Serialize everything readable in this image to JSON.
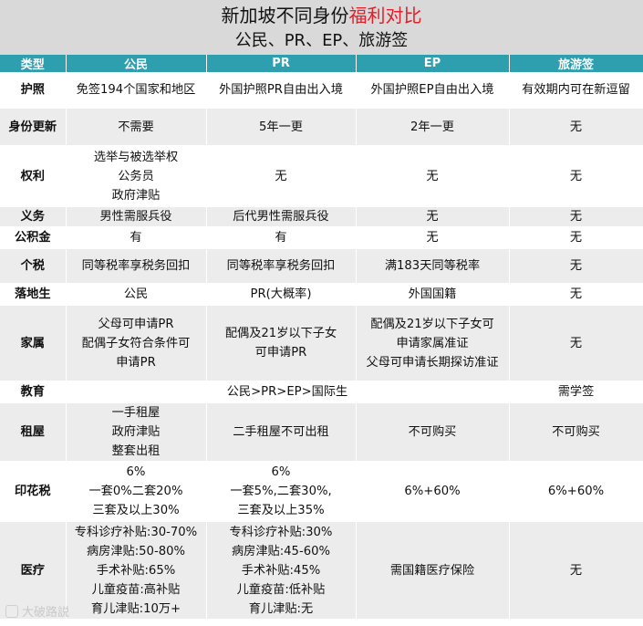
{
  "title": {
    "main": "新加坡不同身份",
    "highlight": "福利对比",
    "subtitle": "公民、PR、EP、旅游签"
  },
  "headers": [
    "类型",
    "公民",
    "PR",
    "EP",
    "旅游签"
  ],
  "rows": [
    {
      "cat": "护照",
      "cells": [
        [
          "免签194个国家和地区"
        ],
        [
          "外国护照PR自由出入境"
        ],
        [
          "外国护照EP自由出入境"
        ],
        [
          "有效期内可在新逗留"
        ]
      ]
    },
    {
      "cat": "身份更新",
      "cells": [
        [
          "不需要"
        ],
        [
          "5年一更"
        ],
        [
          "2年一更"
        ],
        [
          "无"
        ]
      ]
    },
    {
      "cat": "权利",
      "cells": [
        [
          "选举与被选举权",
          "公务员",
          "政府津贴"
        ],
        [
          "无"
        ],
        [
          "无"
        ],
        [
          "无"
        ]
      ]
    },
    {
      "cat": "义务",
      "cells": [
        [
          "男性需服兵役"
        ],
        [
          "后代男性需服兵役"
        ],
        [
          "无"
        ],
        [
          "无"
        ]
      ]
    },
    {
      "cat": "公积金",
      "cells": [
        [
          "有"
        ],
        [
          "有"
        ],
        [
          "无"
        ],
        [
          "无"
        ]
      ]
    },
    {
      "cat": "个税",
      "cells": [
        [
          "同等税率享税务回扣"
        ],
        [
          "同等税率享税务回扣"
        ],
        [
          "满183天同等税率"
        ],
        [
          "无"
        ]
      ]
    },
    {
      "cat": "落地生",
      "cells": [
        [
          "公民"
        ],
        [
          "PR(大概率)"
        ],
        [
          "外国国籍"
        ],
        [
          "无"
        ]
      ]
    },
    {
      "cat": "家属",
      "cells": [
        [
          "父母可申请PR",
          "配偶子女符合条件可",
          "申请PR"
        ],
        [
          "配偶及21岁以下子女",
          "可申请PR"
        ],
        [
          "配偶及21岁以下子女可",
          "申请家属准证",
          "父母可申请长期探访准证"
        ],
        [
          "无"
        ]
      ]
    },
    {
      "cat": "教育",
      "merged": "公民>PR>EP>国际生",
      "last": "需学签"
    },
    {
      "cat": "租屋",
      "cells": [
        [
          "一手租屋",
          "政府津贴",
          "整套出租"
        ],
        [
          "二手租屋不可出租"
        ],
        [
          "不可购买"
        ],
        [
          "不可购买"
        ]
      ]
    },
    {
      "cat": "印花税",
      "cells": [
        [
          "6%",
          "一套0%二套20%",
          "三套及以上30%"
        ],
        [
          "6%",
          "一套5%,二套30%,",
          "三套及以上35%"
        ],
        [
          "6%+60%"
        ],
        [
          "6%+60%"
        ]
      ]
    },
    {
      "cat": "医疗",
      "cells": [
        [
          "专科诊疗补贴:30-70%",
          "病房津贴:50-80%",
          "手术补贴:65%",
          "儿童疫苗:高补贴",
          "育儿津贴:10万+"
        ],
        [
          "专科诊疗补贴:30%",
          "病房津贴:45-60%",
          "手术补贴:45%",
          "儿童疫苗:低补贴",
          "育儿津贴:无"
        ],
        [
          "需国籍医疗保险"
        ],
        [
          "无"
        ]
      ]
    }
  ],
  "watermark": "大破路説"
}
